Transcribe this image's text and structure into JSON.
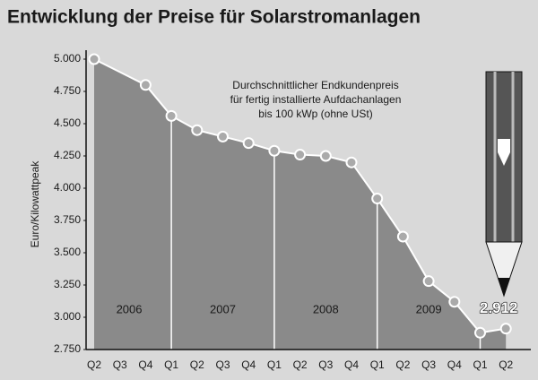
{
  "chart_data": {
    "type": "area",
    "title": "Entwicklung der Preise für Solarstromanlagen",
    "ylabel": "Euro/Kilowattpeak",
    "annotation": [
      "Durchschnittlicher Endkundenpreis",
      "für fertig installierte Aufdachanlagen",
      "bis 100 kWp (ohne USt)"
    ],
    "year_labels": [
      "2006",
      "2007",
      "2008",
      "2009"
    ],
    "categories": [
      "Q2",
      "Q3",
      "Q4",
      "Q1",
      "Q2",
      "Q3",
      "Q4",
      "Q1",
      "Q2",
      "Q3",
      "Q4",
      "Q1",
      "Q2",
      "Q3",
      "Q4",
      "Q1",
      "Q2"
    ],
    "values": [
      5000,
      4900,
      4800,
      4560,
      4450,
      4400,
      4350,
      4290,
      4260,
      4250,
      4200,
      3920,
      3625,
      3280,
      3120,
      2880,
      2912
    ],
    "value_labels": [
      null,
      null,
      null,
      null,
      null,
      null,
      null,
      null,
      null,
      null,
      null,
      null,
      null,
      null,
      null,
      null,
      "2.912"
    ],
    "color": "#8a8a8a",
    "ylim": [
      2750,
      5000
    ],
    "yticks": [
      {
        "value": 2750,
        "label": "2.750"
      },
      {
        "value": 3000,
        "label": "3.000"
      },
      {
        "value": 3250,
        "label": "3.250"
      },
      {
        "value": 3500,
        "label": "3.500"
      },
      {
        "value": 3750,
        "label": "3.750"
      },
      {
        "value": 4000,
        "label": "4.000"
      },
      {
        "value": 4250,
        "label": "4.250"
      },
      {
        "value": 4500,
        "label": "4.500"
      },
      {
        "value": 4750,
        "label": "4.750"
      },
      {
        "value": 5000,
        "label": "5.000"
      }
    ]
  }
}
